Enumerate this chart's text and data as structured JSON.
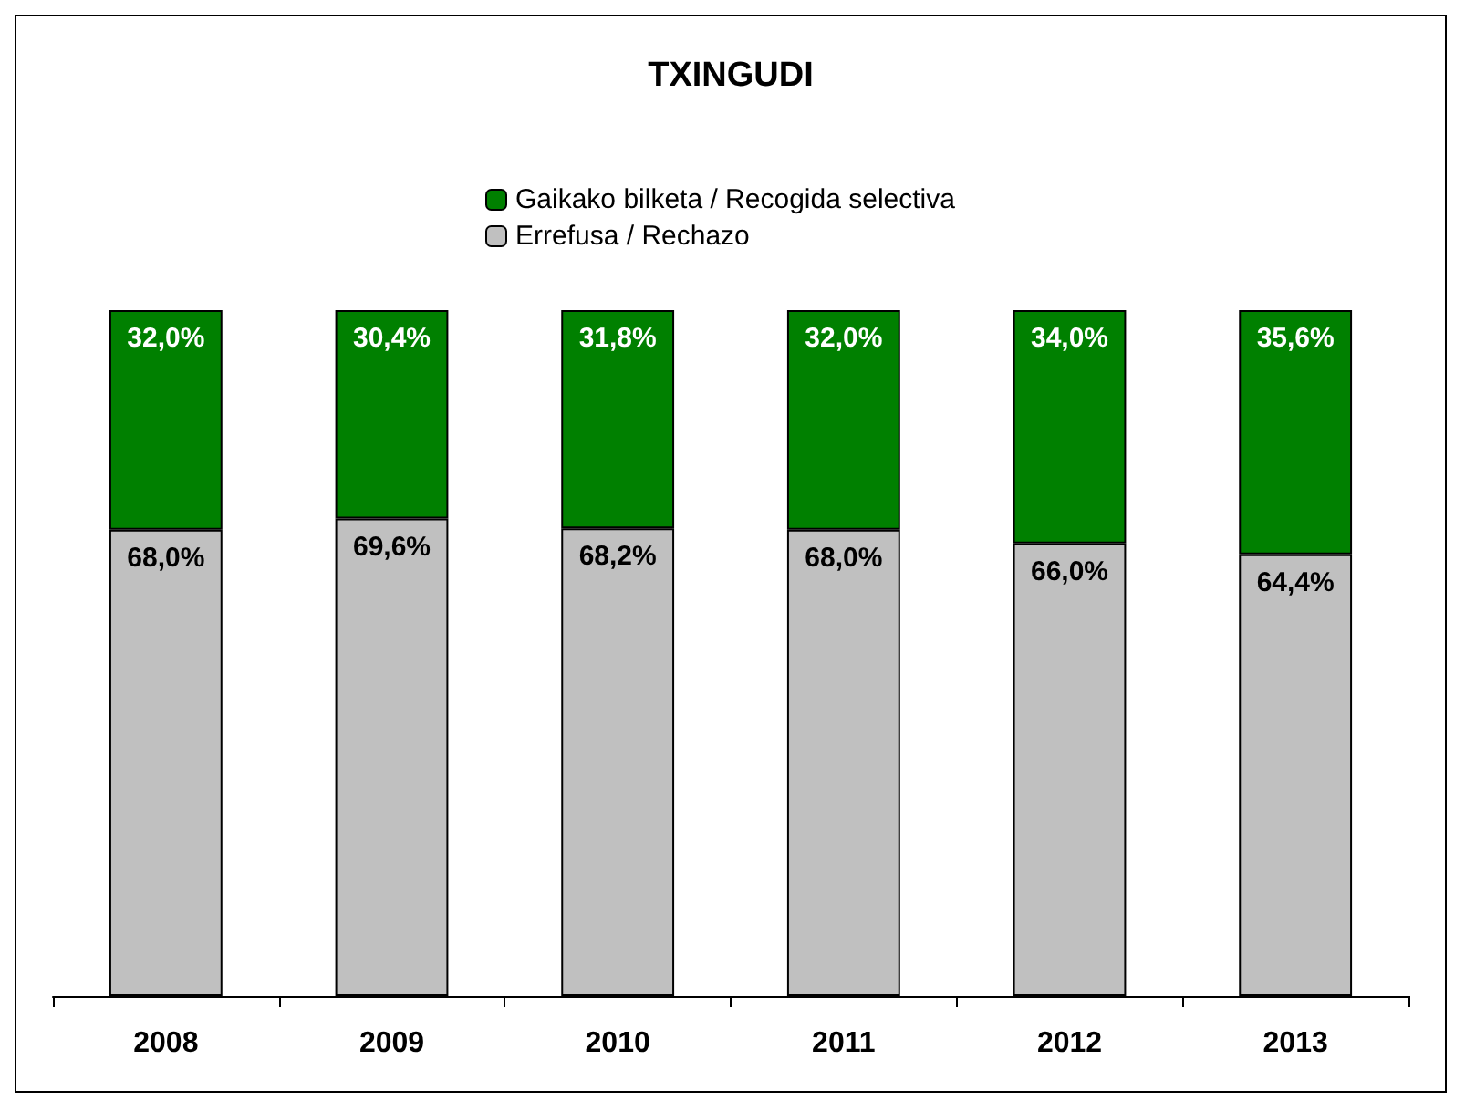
{
  "chart_data": {
    "type": "bar",
    "title": "TXINGUDI",
    "categories": [
      "2008",
      "2009",
      "2010",
      "2011",
      "2012",
      "2013"
    ],
    "stacked": true,
    "legend": "top",
    "tick_labels": "x",
    "series": [
      {
        "name": "Errefusa / Rechazo",
        "color": "#c0c0c0",
        "values": [
          68.0,
          69.6,
          68.2,
          68.0,
          66.0,
          64.4
        ],
        "value_labels": [
          "68,0%",
          "69,6%",
          "68,2%",
          "68,0%",
          "66,0%",
          "64,4%"
        ]
      },
      {
        "name": "Gaikako bilketa / Recogida selectiva",
        "color": "#008000",
        "values": [
          32.0,
          30.4,
          31.8,
          32.0,
          34.0,
          35.6
        ],
        "value_labels": [
          "32,0%",
          "30,4%",
          "31,8%",
          "32,0%",
          "34,0%",
          "35,6%"
        ]
      }
    ]
  }
}
